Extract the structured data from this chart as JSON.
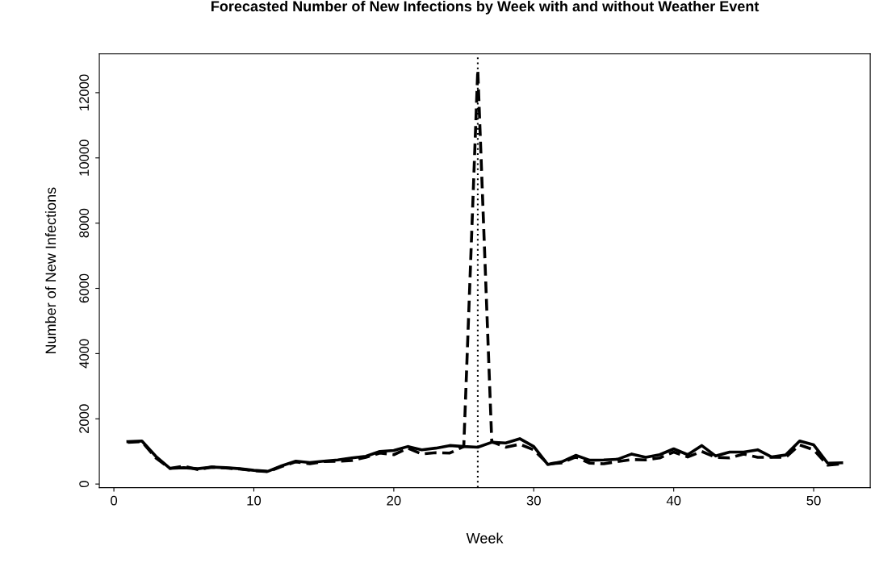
{
  "chart_data": {
    "type": "line",
    "title": "Forecasted Number of New Infections by Week with and without Weather Event",
    "xlabel": "Week",
    "ylabel": "Number of New Infections",
    "x": [
      1,
      2,
      3,
      4,
      5,
      6,
      7,
      8,
      9,
      10,
      11,
      12,
      13,
      14,
      15,
      16,
      17,
      18,
      19,
      20,
      21,
      22,
      23,
      24,
      25,
      26,
      27,
      28,
      29,
      30,
      31,
      32,
      33,
      34,
      35,
      36,
      37,
      38,
      39,
      40,
      41,
      42,
      43,
      44,
      45,
      46,
      47,
      48,
      49,
      50,
      51,
      52
    ],
    "series": [
      {
        "color": "#000000",
        "line_style": "solid",
        "values": [
          1300,
          1320,
          850,
          480,
          500,
          470,
          520,
          500,
          470,
          420,
          390,
          560,
          700,
          660,
          700,
          740,
          800,
          850,
          1000,
          1030,
          1150,
          1050,
          1100,
          1180,
          1150,
          1130,
          1280,
          1260,
          1390,
          1150,
          600,
          680,
          880,
          730,
          740,
          760,
          920,
          820,
          900,
          1080,
          900,
          1180,
          860,
          980,
          980,
          1050,
          830,
          890,
          1320,
          1200,
          640,
          650
        ]
      },
      {
        "color": "#000000",
        "line_style": "dashed",
        "values": [
          1280,
          1300,
          800,
          480,
          550,
          440,
          520,
          490,
          460,
          410,
          380,
          540,
          680,
          620,
          690,
          700,
          720,
          820,
          950,
          900,
          1100,
          920,
          960,
          950,
          1150,
          12700,
          1300,
          1130,
          1220,
          1050,
          620,
          650,
          830,
          640,
          620,
          690,
          750,
          740,
          800,
          980,
          830,
          1000,
          820,
          800,
          920,
          820,
          820,
          820,
          1200,
          1050,
          580,
          620
        ]
      }
    ],
    "xlim": [
      -1.04,
      54.04
    ],
    "xticks": [
      0,
      10,
      20,
      30,
      40,
      50
    ],
    "ylim": [
      -110,
      13190
    ],
    "yticks": [
      0,
      2000,
      4000,
      6000,
      8000,
      10000,
      12000
    ],
    "ref_lines": [
      {
        "axis": "x",
        "value": 26,
        "color": "#000000",
        "line_style": "dotted"
      }
    ],
    "grid": false,
    "legend": false
  }
}
